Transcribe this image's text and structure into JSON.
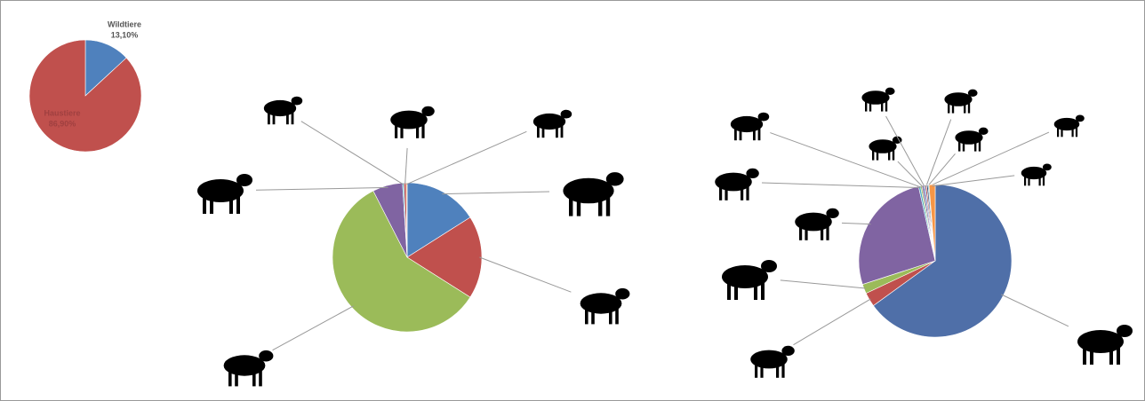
{
  "chart_data": [
    {
      "type": "pie",
      "categories": [
        "Wildtiere",
        "Haustiere"
      ],
      "values": [
        13.1,
        86.9
      ],
      "value_labels": [
        "13,10%",
        "86,90%"
      ],
      "colors": [
        "#4f81bd",
        "#c0504d"
      ]
    },
    {
      "type": "pie",
      "categories": [
        null,
        null,
        null,
        null,
        null,
        null,
        null
      ],
      "values": [
        16,
        18,
        58.5,
        6.5,
        0.3,
        0.5,
        0.2
      ],
      "colors": [
        "#4f81bd",
        "#c0504d",
        "#9bbb59",
        "#8064a2",
        "#4bacc6",
        "#c0504d",
        "#f79646"
      ]
    },
    {
      "type": "pie",
      "categories": [
        null,
        null,
        null,
        null,
        null,
        null,
        null,
        null,
        null,
        null,
        null,
        null
      ],
      "values": [
        65,
        3,
        2,
        26.5,
        0.4,
        0.3,
        0.4,
        0.3,
        0.3,
        0.3,
        0.2,
        1.3
      ],
      "colors": [
        "#4f6fa8",
        "#c0504d",
        "#9bbb59",
        "#8064a2",
        "#4bacc6",
        "#9bbb59",
        "#8064a2",
        "#4f81bd",
        "#c0504d",
        "#2c4d75",
        "#4bacc6",
        "#f79646"
      ]
    }
  ]
}
